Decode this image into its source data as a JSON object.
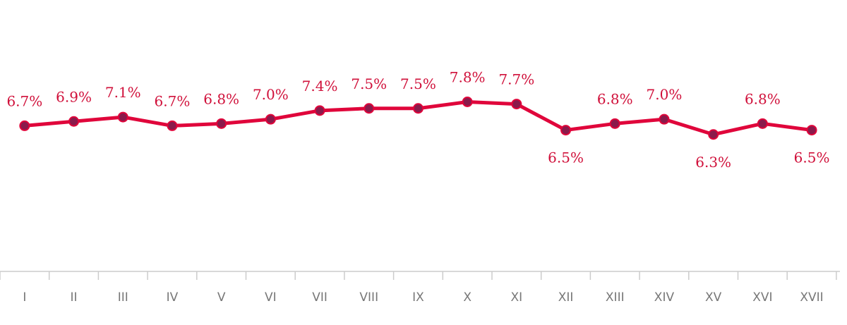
{
  "chart_data": {
    "type": "line",
    "categories": [
      "I",
      "II",
      "III",
      "IV",
      "V",
      "VI",
      "VII",
      "VIII",
      "IX",
      "X",
      "XI",
      "XII",
      "XIII",
      "XIV",
      "XV",
      "XVI",
      "XVII"
    ],
    "values": [
      6.7,
      6.9,
      7.1,
      6.7,
      6.8,
      7.0,
      7.4,
      7.5,
      7.5,
      7.8,
      7.7,
      6.5,
      6.8,
      7.0,
      6.3,
      6.8,
      6.5
    ],
    "value_labels": [
      "6.7%",
      "6.9%",
      "7.1%",
      "6.7%",
      "6.8%",
      "7.0%",
      "7.4%",
      "7.5%",
      "7.5%",
      "7.8%",
      "7.7%",
      "6.5%",
      "6.8%",
      "7.0%",
      "6.3%",
      "6.8%",
      "6.5%"
    ],
    "color": "#e0063b",
    "ylim": [
      0,
      12
    ]
  }
}
